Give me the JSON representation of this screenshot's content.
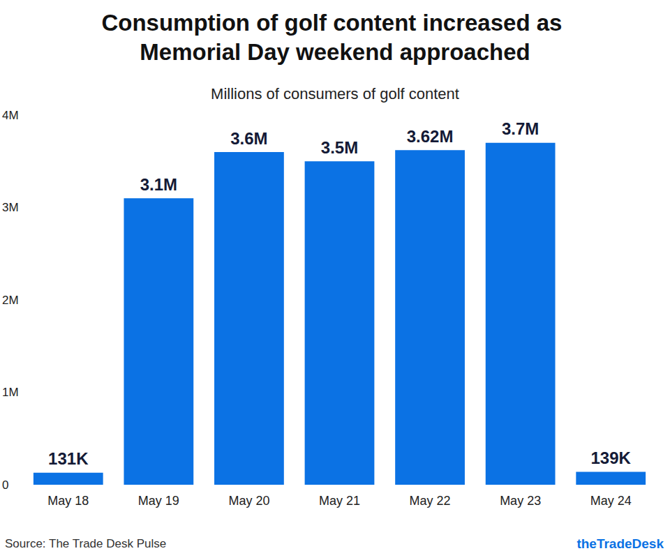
{
  "chart_data": {
    "type": "bar",
    "title": "Consumption of golf content increased as Memorial Day weekend approached",
    "subtitle": "Millions of consumers of golf content",
    "source": "Source: The Trade Desk Pulse",
    "brand": "theTradeDesk",
    "categories": [
      "May 18",
      "May 19",
      "May 20",
      "May 21",
      "May 22",
      "May 23",
      "May 24"
    ],
    "values": [
      0.131,
      3.1,
      3.6,
      3.5,
      3.62,
      3.7,
      0.139
    ],
    "value_labels": [
      "131K",
      "3.1M",
      "3.6M",
      "3.5M",
      "3.62M",
      "3.7M",
      "139K"
    ],
    "color": "#0b72e4",
    "ylim": [
      0,
      4
    ],
    "yticks": [
      0,
      {
        "value": 1,
        "label": "1M"
      },
      {
        "value": 2,
        "label": "2M"
      },
      {
        "value": 3,
        "label": "3M"
      },
      {
        "value": 4,
        "label": "4M"
      }
    ],
    "grid": false,
    "data_labels": true
  }
}
